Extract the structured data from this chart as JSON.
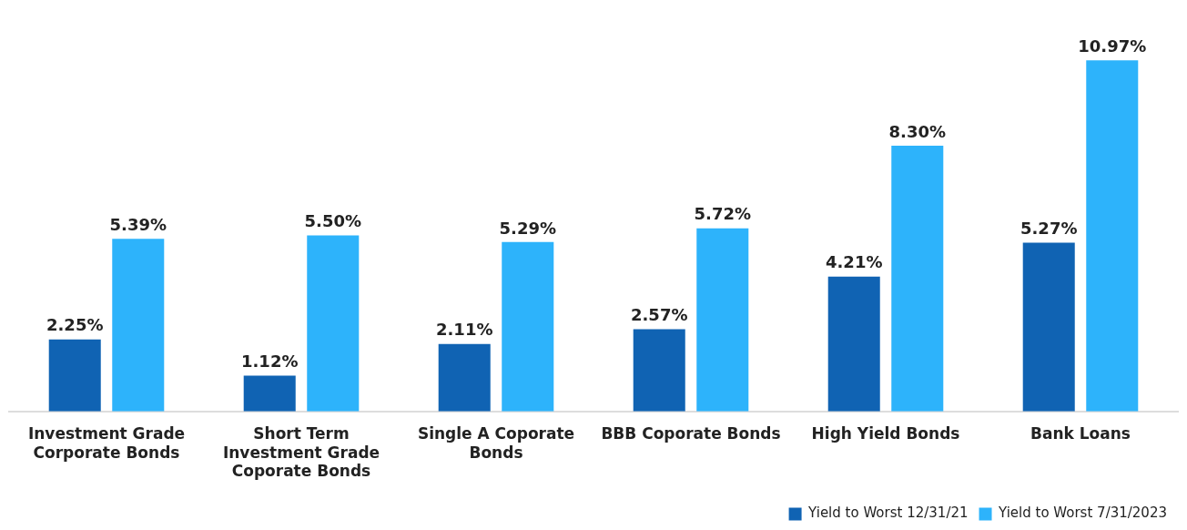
{
  "chart_data": {
    "type": "bar",
    "categories": [
      "Investment Grade Corporate Bonds",
      "Short Term Investment Grade Coporate Bonds",
      "Single A Coporate Bonds",
      "BBB Coporate Bonds",
      "High Yield Bonds",
      "Bank Loans"
    ],
    "series": [
      {
        "name": "Yield to Worst 12/31/21",
        "color": "#1063b3",
        "values": [
          2.25,
          1.12,
          2.11,
          2.57,
          4.21,
          5.27
        ],
        "value_labels": [
          "2.25%",
          "1.12%",
          "2.11%",
          "2.57%",
          "4.21%",
          "5.27%"
        ]
      },
      {
        "name": "Yield to Worst 7/31/2023",
        "color": "#2db3fb",
        "values": [
          5.39,
          5.5,
          5.29,
          5.72,
          8.3,
          10.97
        ],
        "value_labels": [
          "5.39%",
          "5.50%",
          "5.29%",
          "5.72%",
          "8.30%",
          "10.97%"
        ]
      }
    ],
    "tick_labels": "x",
    "grid": false,
    "legend": "bottom right"
  }
}
